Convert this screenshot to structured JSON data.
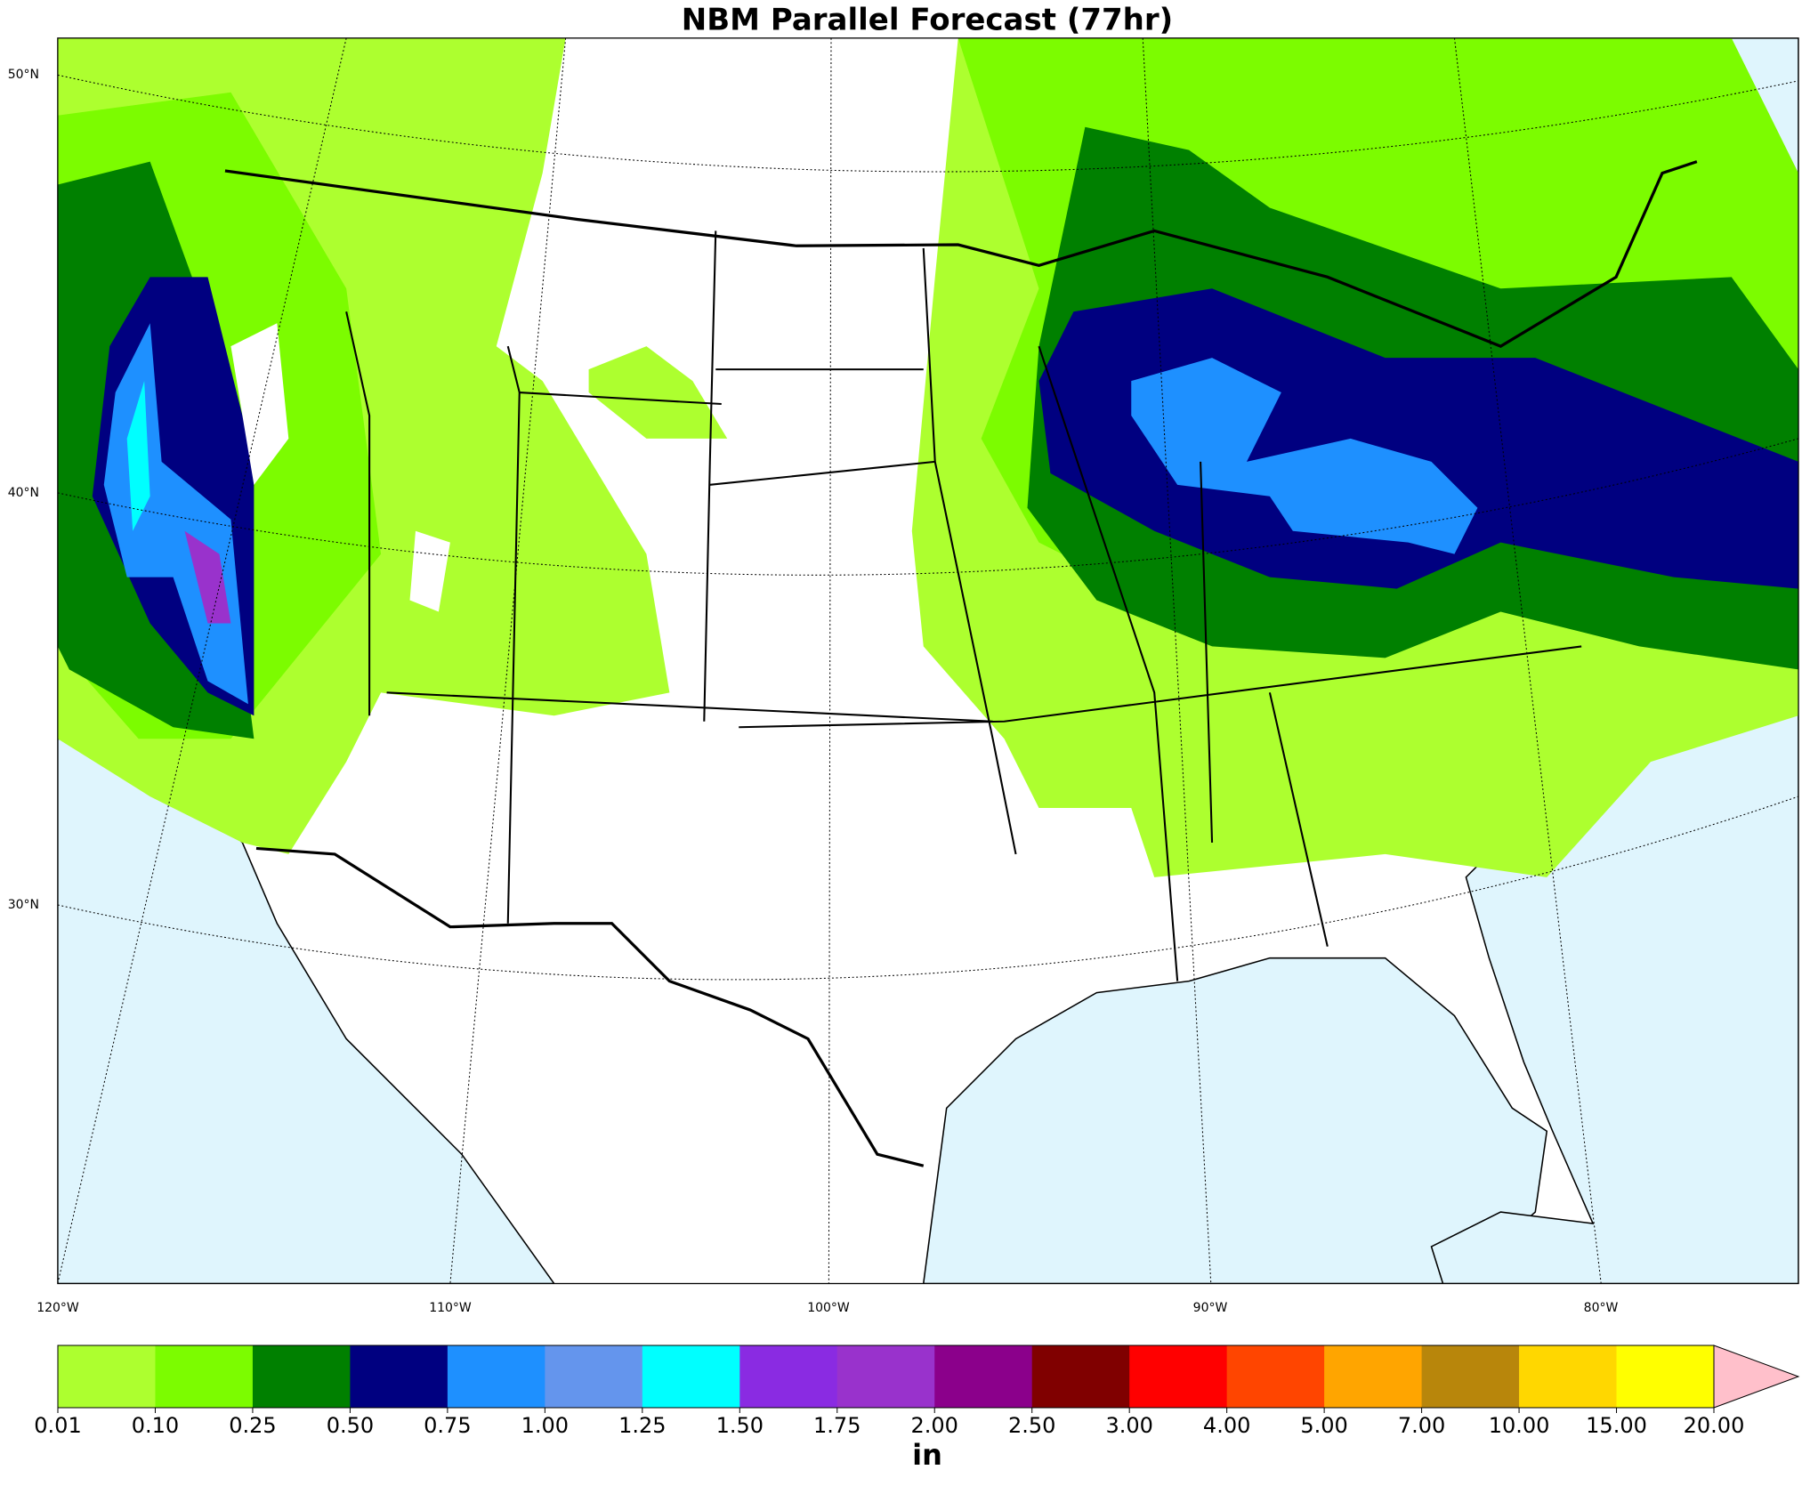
{
  "title": "NBM Parallel Forecast (77hr)",
  "lat_labels": [
    "50°N",
    "40°N",
    "30°N"
  ],
  "lon_labels": [
    "120°W",
    "110°W",
    "100°W",
    "90°W",
    "80°W"
  ],
  "colorbar": {
    "label": "in",
    "ticks": [
      {
        "value": 0.01,
        "label": "0.01"
      },
      {
        "value": 0.1,
        "label": "0.10"
      },
      {
        "value": 0.25,
        "label": "0.25"
      },
      {
        "value": 0.5,
        "label": "0.50"
      },
      {
        "value": 0.75,
        "label": "0.75"
      },
      {
        "value": 1,
        "label": "1.00"
      },
      {
        "value": 1.25,
        "label": "1.25"
      },
      {
        "value": 1.5,
        "label": "1.50"
      },
      {
        "value": 1.75,
        "label": "1.75"
      },
      {
        "value": 2,
        "label": "2.00"
      },
      {
        "value": 2.5,
        "label": "2.50"
      },
      {
        "value": 3,
        "label": "3.00"
      },
      {
        "value": 4,
        "label": "4.00"
      },
      {
        "value": 5,
        "label": "5.00"
      },
      {
        "value": 7,
        "label": "7.00"
      },
      {
        "value": 10,
        "label": "10.00"
      },
      {
        "value": 15,
        "label": "15.00"
      },
      {
        "value": 20,
        "label": "20.00"
      }
    ],
    "colors": [
      "#adff2f",
      "#7cfc00",
      "#008000",
      "#000080",
      "#1e90ff",
      "#6495ed",
      "#00ffff",
      "#8a2be2",
      "#9932cc",
      "#8b008b",
      "#800000",
      "#ff0000",
      "#ff4500",
      "#ffa500",
      "#b8860b",
      "#ffd700",
      "#ffff00"
    ],
    "extend_color": "#ffc0cb"
  }
}
